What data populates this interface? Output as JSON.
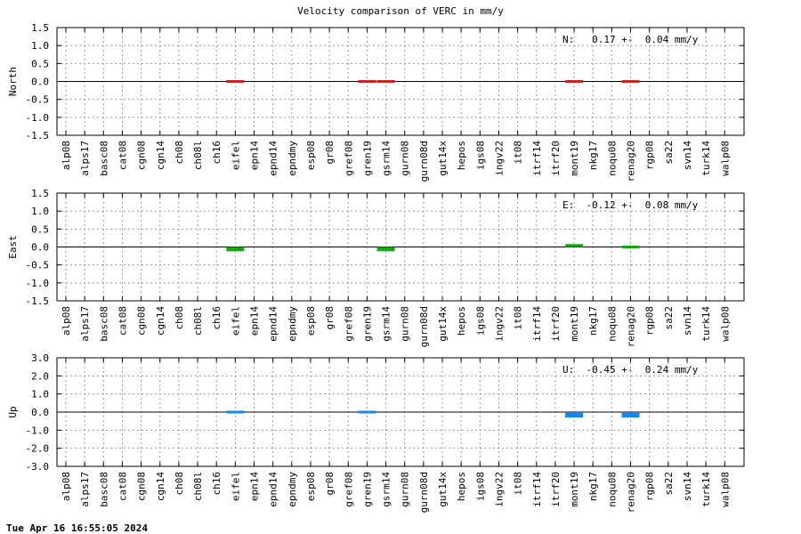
{
  "title": "Velocity comparison of VERC in mm/y",
  "timestamp": "Tue Apr 16 16:55:05 2024",
  "chart_data": [
    {
      "type": "bar",
      "ylabel": "North",
      "annotation": "N:   0.17 +-  0.04 mm/y",
      "color": "#cc2222",
      "ylim": [
        -1.5,
        1.5
      ],
      "yticks": [
        1.5,
        1.0,
        0.5,
        0.0,
        -0.5,
        -1.0,
        -1.5
      ],
      "ytick_labels": [
        "1.5",
        "1.0",
        "0.5",
        "0.0",
        "-0.5",
        "-1.0",
        "-1.5"
      ],
      "grid": true,
      "categories": [
        "alp08",
        "alps17",
        "basc08",
        "cat08",
        "cgn08",
        "cgn14",
        "ch08",
        "ch08l",
        "ch16",
        "eifel",
        "epn14",
        "epnd14",
        "epndmy",
        "esp08",
        "gr08",
        "gref08",
        "gren19",
        "gsrm14",
        "gurn08",
        "gurn08d",
        "gut14x",
        "hepos",
        "igs08",
        "ingv22",
        "it08",
        "itrf14",
        "itrf20",
        "mont19",
        "nkg17",
        "noqu08",
        "renag20",
        "rgp08",
        "sa22",
        "svn14",
        "turk14",
        "walp08"
      ],
      "values": [
        null,
        null,
        null,
        null,
        null,
        null,
        null,
        null,
        null,
        -0.05,
        null,
        null,
        null,
        null,
        null,
        null,
        0.0,
        -0.03,
        null,
        null,
        null,
        null,
        null,
        null,
        null,
        null,
        null,
        0.0,
        null,
        null,
        0.02,
        null,
        null,
        null,
        null,
        null
      ]
    },
    {
      "type": "bar",
      "ylabel": "East",
      "annotation": "E:  -0.12 +-  0.08 mm/y",
      "color": "#11aa11",
      "ylim": [
        -1.5,
        1.5
      ],
      "yticks": [
        1.5,
        1.0,
        0.5,
        0.0,
        -0.5,
        -1.0,
        -1.5
      ],
      "ytick_labels": [
        "1.5",
        "1.0",
        "0.5",
        "0.0",
        "-0.5",
        "-1.0",
        "-1.5"
      ],
      "grid": true,
      "categories": [
        "alp08",
        "alps17",
        "basc08",
        "cat08",
        "cgn08",
        "cgn14",
        "ch08",
        "ch08l",
        "ch16",
        "eifel",
        "epn14",
        "epnd14",
        "epndmy",
        "esp08",
        "gr08",
        "gref08",
        "gren19",
        "gsrm14",
        "gurn08",
        "gurn08d",
        "gut14x",
        "hepos",
        "igs08",
        "ingv22",
        "it08",
        "itrf14",
        "itrf20",
        "mont19",
        "nkg17",
        "noqu08",
        "renag20",
        "rgp08",
        "sa22",
        "svn14",
        "turk14",
        "walp08"
      ],
      "values": [
        null,
        null,
        null,
        null,
        null,
        null,
        null,
        null,
        null,
        -0.12,
        null,
        null,
        null,
        null,
        null,
        null,
        null,
        -0.12,
        null,
        null,
        null,
        null,
        null,
        null,
        null,
        null,
        null,
        0.08,
        null,
        null,
        -0.04,
        null,
        null,
        null,
        null,
        null
      ]
    },
    {
      "type": "bar",
      "ylabel": "Up",
      "annotation": "U:  -0.45 +-  0.24 mm/y",
      "color": "#1188ee",
      "ylim": [
        -3.0,
        3.0
      ],
      "yticks": [
        3.0,
        2.0,
        1.0,
        0.0,
        -1.0,
        -2.0,
        -3.0
      ],
      "ytick_labels": [
        "3.0",
        "2.0",
        "1.0",
        "0.0",
        "-1.0",
        "-2.0",
        "-3.0"
      ],
      "grid": true,
      "categories": [
        "alp08",
        "alps17",
        "basc08",
        "cat08",
        "cgn08",
        "cgn14",
        "ch08",
        "ch08l",
        "ch16",
        "eifel",
        "epn14",
        "epnd14",
        "epndmy",
        "esp08",
        "gr08",
        "gref08",
        "gren19",
        "gsrm14",
        "gurn08",
        "gurn08d",
        "gut14x",
        "hepos",
        "igs08",
        "ingv22",
        "it08",
        "itrf14",
        "itrf20",
        "mont19",
        "nkg17",
        "noqu08",
        "renag20",
        "rgp08",
        "sa22",
        "svn14",
        "turk14",
        "walp08"
      ],
      "values": [
        null,
        null,
        null,
        null,
        null,
        null,
        null,
        null,
        null,
        0.07,
        null,
        null,
        null,
        null,
        null,
        null,
        0.1,
        null,
        null,
        null,
        null,
        null,
        null,
        null,
        null,
        null,
        null,
        -0.3,
        null,
        null,
        -0.3,
        null,
        null,
        null,
        null,
        null
      ]
    }
  ]
}
